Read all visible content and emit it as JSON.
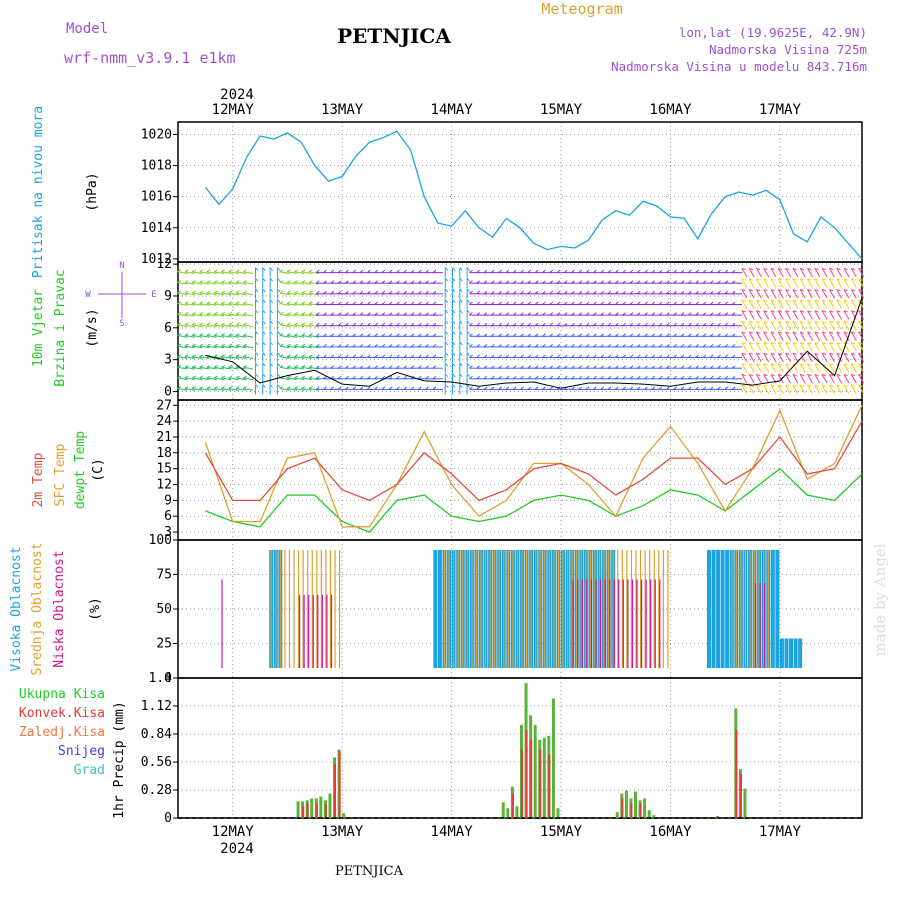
{
  "header": {
    "model_label": "Model",
    "model_name": "wrf-nmm_v3.9.1  e1km",
    "station": "PETNJICA",
    "product": "Meteogram",
    "location": "lon,lat (19.9625E, 42.9N)",
    "elevation": "Nadmorska Visina 725m",
    "model_elevation": "Nadmorska Visina u modelu 843.716m",
    "footer_station": "PETNJICA",
    "credit": "made by Angel"
  },
  "colors": {
    "pressure": "#1ca4e0",
    "temp2m": "#e84c3a",
    "sfc": "#e0a030",
    "dewpt": "#22cc22",
    "high_cloud": "#1ca4e0",
    "mid_cloud": "#e0a030",
    "low_cloud": "#cc1890",
    "total_precip": "#5ab23a",
    "conv_precip": "#e83838",
    "title_purple": "#a050d0",
    "wind_arrows": [
      "#8a2be2",
      "#4060ff",
      "#20a0ff",
      "#20c060",
      "#80d020",
      "#ffcc00",
      "#ff4080"
    ]
  },
  "time_axis": {
    "year": "2024",
    "days": [
      "12MAY",
      "13MAY",
      "14MAY",
      "15MAY",
      "16MAY",
      "17MAY"
    ]
  },
  "panels": {
    "pressure": {
      "ylabel_desc": "Pritisak na nivou mora",
      "unit": "(hPa)",
      "ylim": [
        1011.8,
        1020.8
      ],
      "ticks": [
        "1012",
        "1014",
        "1016",
        "1018",
        "1020"
      ]
    },
    "wind": {
      "ylabel_line1": "10m Vjetar",
      "ylabel_line2": "Brzina i Pravac",
      "unit": "(m/s)",
      "compass_n": "N",
      "compass_w": "W",
      "compass_e": "E",
      "compass_s": "S",
      "ylim": [
        -0.8,
        12.2
      ],
      "ticks": [
        "0",
        "3",
        "6",
        "9",
        "12"
      ]
    },
    "temperature": {
      "ylabel_temp2m": "2m Temp",
      "ylabel_sfc": "SFC Temp",
      "ylabel_dew": "dewpt Temp",
      "unit": "(C)",
      "ylim": [
        1.5,
        28
      ],
      "ticks": [
        "3",
        "6",
        "9",
        "12",
        "15",
        "18",
        "21",
        "24",
        "27"
      ]
    },
    "clouds": {
      "ylabel_high": "Visoka Oblacnost",
      "ylabel_mid": "Srednja Oblacnost",
      "ylabel_low": "Niska Oblacnost",
      "unit": "(%)",
      "ylim": [
        0,
        100
      ],
      "ticks": [
        "0",
        "25",
        "50",
        "75",
        "100"
      ]
    },
    "precip": {
      "ylabel": "1hr Precip (mm)",
      "ylim": [
        0,
        1.4
      ],
      "ticks": [
        "0",
        "0.28",
        "0.56",
        "0.84",
        "1.12",
        "1.4"
      ],
      "legend": [
        "Ukupna Kisa",
        "Konvek.Kisa",
        "Zaledj.Kisa",
        "Snijeg",
        "Grad"
      ],
      "legend_colors": [
        "#22cc22",
        "#e83838",
        "#f07840",
        "#4040e0",
        "#40c0c0"
      ]
    }
  },
  "chart_data": [
    {
      "type": "line",
      "name": "pressure",
      "x_hours": [
        0,
        3,
        6,
        9,
        12,
        15,
        18,
        21,
        24,
        27,
        30,
        33,
        36,
        39,
        42,
        45,
        48,
        51,
        54,
        57,
        60,
        63,
        66,
        69,
        72,
        75,
        78,
        81,
        84,
        87,
        90,
        93,
        96,
        99,
        102,
        105,
        108,
        111,
        114,
        117,
        120,
        123,
        126,
        129,
        132,
        135,
        138,
        141,
        144
      ],
      "values": [
        1016.6,
        1015.5,
        1016.5,
        1018.5,
        1019.9,
        1019.7,
        1020.1,
        1019.5,
        1018.0,
        1017.0,
        1017.3,
        1018.6,
        1019.5,
        1019.8,
        1020.2,
        1019.0,
        1016.0,
        1014.3,
        1014.1,
        1015.1,
        1014.0,
        1013.4,
        1014.6,
        1014.0,
        1013.0,
        1012.6,
        1012.8,
        1012.7,
        1013.2,
        1014.5,
        1015.1,
        1014.8,
        1015.7,
        1015.4,
        1014.7,
        1014.6,
        1013.3,
        1014.9,
        1016.0,
        1016.3,
        1016.1,
        1016.4,
        1015.8,
        1013.6,
        1013.1,
        1014.7,
        1014.0,
        1013.0,
        1012.0
      ],
      "xlabel": "",
      "ylabel": "Pritisak na nivou mora"
    },
    {
      "type": "line",
      "name": "wind_speed",
      "x_hours": [
        0,
        6,
        12,
        18,
        24,
        30,
        36,
        42,
        48,
        54,
        60,
        66,
        72,
        78,
        84,
        90,
        96,
        102,
        108,
        114,
        120,
        126,
        132,
        138,
        144
      ],
      "values": [
        3.4,
        2.8,
        0.8,
        1.5,
        2.0,
        0.7,
        0.5,
        1.8,
        1.0,
        0.9,
        0.5,
        0.8,
        0.9,
        0.3,
        0.8,
        0.8,
        0.7,
        0.5,
        0.9,
        0.9,
        0.6,
        1.0,
        3.8,
        1.5,
        8.8
      ]
    },
    {
      "type": "line",
      "name": "temperature",
      "x_hours": [
        0,
        6,
        12,
        18,
        24,
        30,
        36,
        42,
        48,
        54,
        60,
        66,
        72,
        78,
        84,
        90,
        96,
        102,
        108,
        114,
        120,
        126,
        132,
        138,
        144
      ],
      "series": [
        {
          "name": "2m Temp",
          "values": [
            18,
            9,
            9,
            15,
            17,
            11,
            9,
            12,
            18,
            14,
            9,
            11,
            15,
            16,
            14,
            10,
            13,
            17,
            17,
            12,
            15,
            21,
            14,
            15,
            24
          ]
        },
        {
          "name": "SFC Temp",
          "values": [
            20,
            5,
            5,
            17,
            18,
            4,
            4,
            12,
            22,
            12,
            6,
            9,
            16,
            16,
            12,
            6,
            17,
            23,
            16,
            7,
            15,
            26,
            13,
            16,
            27
          ]
        },
        {
          "name": "dewpt Temp",
          "values": [
            7,
            5,
            4,
            10,
            10,
            5,
            3,
            9,
            10,
            6,
            5,
            6,
            9,
            10,
            9,
            6,
            8,
            11,
            10,
            7,
            11,
            15,
            10,
            9,
            14
          ]
        }
      ]
    },
    {
      "type": "bar",
      "name": "cloud_cover",
      "series": [
        {
          "name": "Visoka Oblacnost",
          "blocks": [
            [
              14,
              17,
              100
            ],
            [
              50,
              90,
              100
            ],
            [
              110,
              126,
              100
            ],
            [
              126,
              131,
              25
            ]
          ]
        },
        {
          "name": "Srednja Oblacnost",
          "blocks": [
            [
              14,
              30,
              100
            ],
            [
              52,
              102,
              100
            ],
            [
              115,
              124,
              100
            ]
          ]
        },
        {
          "name": "Niska Oblacnost",
          "blocks": [
            [
              3,
              4,
              75
            ],
            [
              20,
              28,
              62
            ],
            [
              80,
              100,
              75
            ],
            [
              120,
              123,
              72
            ]
          ]
        }
      ]
    },
    {
      "type": "bar",
      "name": "precip_1hr",
      "series": [
        {
          "name": "Ukupna Kisa",
          "x_hours": [
            20,
            21,
            22,
            23,
            24,
            25,
            26,
            27,
            28,
            29,
            30,
            31,
            65,
            66,
            67,
            68,
            69,
            70,
            71,
            72,
            73,
            74,
            75,
            76,
            77,
            78,
            79,
            80,
            90,
            91,
            92,
            93,
            94,
            95,
            96,
            97,
            98,
            99,
            112,
            113,
            116,
            117,
            118,
            119
          ],
          "values": [
            0.17,
            0.17,
            0.18,
            0.2,
            0.2,
            0.22,
            0.18,
            0.25,
            0.62,
            0.7,
            0.05,
            0,
            0.16,
            0.1,
            0.32,
            0.12,
            0.95,
            1.38,
            1.05,
            0.95,
            0.8,
            0.82,
            0.84,
            1.22,
            0.1,
            0,
            0,
            0,
            0.06,
            0.25,
            0.28,
            0.2,
            0.27,
            0.18,
            0.2,
            0.08,
            0.03,
            0,
            0.02,
            0,
            1.12,
            0.5,
            0.3,
            0
          ]
        },
        {
          "name": "Konvek.Kisa",
          "x_hours": [
            21,
            22,
            24,
            26,
            28,
            29,
            67,
            69,
            70,
            71,
            73,
            75,
            91,
            93,
            95,
            116,
            117
          ],
          "values": [
            0.12,
            0.15,
            0.15,
            0.14,
            0.55,
            0.68,
            0.25,
            0.7,
            0.9,
            0.8,
            0.7,
            0.65,
            0.2,
            0.15,
            0.15,
            0.9,
            0.45
          ]
        }
      ]
    }
  ]
}
